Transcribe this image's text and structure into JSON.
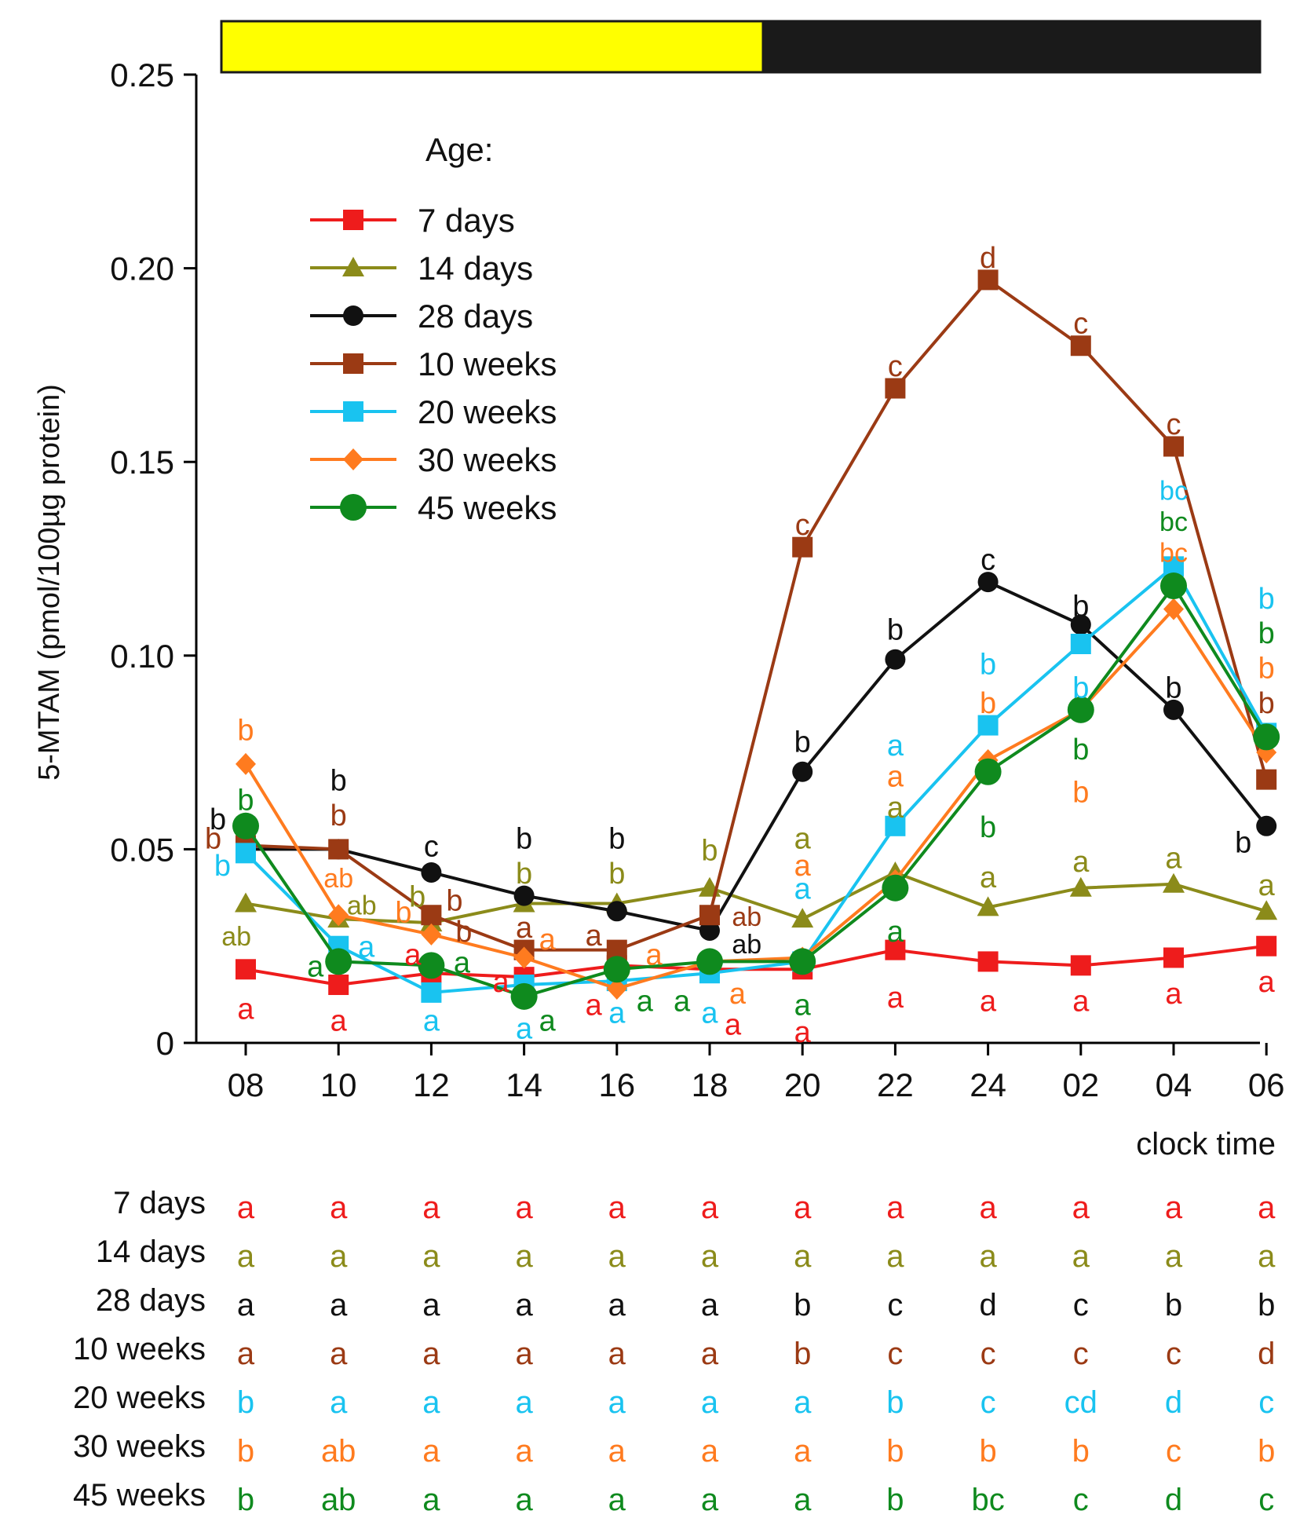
{
  "chart_data": {
    "type": "line",
    "ylabel": "5-MTAM (pmol/100µg protein)",
    "xlabel": "clock time",
    "ylim": [
      0,
      0.25
    ],
    "yticks": [
      0,
      0.05,
      0.1,
      0.15,
      0.2,
      0.25
    ],
    "ytick_labels": [
      "0",
      "0.05",
      "0.10",
      "0.15",
      "0.20",
      "0.25"
    ],
    "categories": [
      "08",
      "10",
      "12",
      "14",
      "16",
      "18",
      "20",
      "22",
      "24",
      "02",
      "04",
      "06"
    ],
    "light_bar": {
      "light_color": "#ffff00",
      "dark_color": "#1a1a1a",
      "light_until": "19.2"
    },
    "legend_title": "Age:",
    "series": [
      {
        "name": "7 days",
        "color": "#ee1c1c",
        "marker": "square",
        "values": [
          0.019,
          0.015,
          0.018,
          0.017,
          0.02,
          0.019,
          0.019,
          0.024,
          0.021,
          0.02,
          0.022,
          0.025
        ],
        "letters": [
          "a",
          "a",
          "a",
          "a",
          "a",
          "a",
          "a",
          "a",
          "a",
          "a",
          "a",
          "a"
        ]
      },
      {
        "name": "14 days",
        "color": "#8b8b1a",
        "marker": "triangle",
        "values": [
          0.036,
          0.032,
          0.031,
          0.036,
          0.036,
          0.04,
          0.032,
          0.044,
          0.035,
          0.04,
          0.041,
          0.034
        ],
        "letters": [
          "a",
          "a",
          "a",
          "a",
          "a",
          "a",
          "a",
          "a",
          "a",
          "a",
          "a",
          "a"
        ]
      },
      {
        "name": "28 days",
        "color": "#111111",
        "marker": "circle",
        "values": [
          0.05,
          0.05,
          0.044,
          0.038,
          0.034,
          0.029,
          0.07,
          0.099,
          0.119,
          0.108,
          0.086,
          0.056
        ],
        "letters": [
          "a",
          "a",
          "a",
          "a",
          "a",
          "a",
          "b",
          "c",
          "d",
          "c",
          "b",
          "b"
        ]
      },
      {
        "name": "10 weeks",
        "color": "#9b3a14",
        "marker": "square",
        "values": [
          0.051,
          0.05,
          0.033,
          0.024,
          0.024,
          0.033,
          0.128,
          0.169,
          0.197,
          0.18,
          0.154,
          0.068
        ],
        "letters": [
          "a",
          "a",
          "a",
          "a",
          "a",
          "a",
          "b",
          "c",
          "c",
          "c",
          "c",
          "d"
        ]
      },
      {
        "name": "20 weeks",
        "color": "#19c3f0",
        "marker": "square",
        "values": [
          0.049,
          0.025,
          0.013,
          0.015,
          0.016,
          0.018,
          0.021,
          0.056,
          0.082,
          0.103,
          0.123,
          0.08
        ],
        "letters": [
          "b",
          "a",
          "a",
          "a",
          "a",
          "a",
          "a",
          "b",
          "c",
          "cd",
          "d",
          "c"
        ]
      },
      {
        "name": "30 weeks",
        "color": "#ff7b1f",
        "marker": "diamond",
        "values": [
          0.072,
          0.033,
          0.028,
          0.022,
          0.014,
          0.021,
          0.022,
          0.042,
          0.073,
          0.086,
          0.112,
          0.075
        ],
        "letters": [
          "b",
          "ab",
          "a",
          "a",
          "a",
          "a",
          "a",
          "b",
          "b",
          "b",
          "c",
          "b"
        ]
      },
      {
        "name": "45 weeks",
        "color": "#0f8a1e",
        "marker": "bigcircle",
        "values": [
          0.056,
          0.021,
          0.02,
          0.012,
          0.019,
          0.021,
          0.021,
          0.04,
          0.07,
          0.086,
          0.118,
          0.079
        ],
        "letters": [
          "b",
          "ab",
          "a",
          "a",
          "a",
          "a",
          "a",
          "b",
          "bc",
          "c",
          "d",
          "c"
        ]
      }
    ],
    "annotations": [
      {
        "text": "b",
        "series": 5,
        "x": 0,
        "y": 0.081
      },
      {
        "text": "b",
        "series": 6,
        "x": 0,
        "y": 0.063
      },
      {
        "text": "b",
        "series": 2,
        "x": -0.3,
        "y": 0.058
      },
      {
        "text": "b",
        "series": 3,
        "x": -0.35,
        "y": 0.053
      },
      {
        "text": "b",
        "series": 4,
        "x": -0.25,
        "y": 0.046
      },
      {
        "text": "ab",
        "series": 1,
        "x": -0.1,
        "y": 0.028
      },
      {
        "text": "a",
        "series": 0,
        "x": 0,
        "y": 0.009
      },
      {
        "text": "b",
        "series": 2,
        "x": 1,
        "y": 0.068
      },
      {
        "text": "b",
        "series": 3,
        "x": 1,
        "y": 0.059
      },
      {
        "text": "ab",
        "series": 5,
        "x": 1,
        "y": 0.043
      },
      {
        "text": "ab",
        "series": 1,
        "x": 1.25,
        "y": 0.036
      },
      {
        "text": "a",
        "series": 6,
        "x": 0.75,
        "y": 0.02
      },
      {
        "text": "a",
        "series": 4,
        "x": 1.3,
        "y": 0.025
      },
      {
        "text": "a",
        "series": 0,
        "x": 1,
        "y": 0.006
      },
      {
        "text": "c",
        "series": 2,
        "x": 2,
        "y": 0.051
      },
      {
        "text": "b",
        "series": 1,
        "x": 1.85,
        "y": 0.038
      },
      {
        "text": "b",
        "series": 3,
        "x": 2.25,
        "y": 0.037
      },
      {
        "text": "b",
        "series": 5,
        "x": 1.7,
        "y": 0.034
      },
      {
        "text": "b",
        "series": 3,
        "x": 2.35,
        "y": 0.029
      },
      {
        "text": "a",
        "series": 0,
        "x": 1.8,
        "y": 0.023
      },
      {
        "text": "a",
        "series": 6,
        "x": 2.33,
        "y": 0.021
      },
      {
        "text": "a",
        "series": 4,
        "x": 2,
        "y": 0.006
      },
      {
        "text": "b",
        "series": 2,
        "x": 3,
        "y": 0.053
      },
      {
        "text": "b",
        "series": 1,
        "x": 3,
        "y": 0.044
      },
      {
        "text": "a",
        "series": 3,
        "x": 3,
        "y": 0.03
      },
      {
        "text": "a",
        "series": 5,
        "x": 3.25,
        "y": 0.027
      },
      {
        "text": "a",
        "series": 0,
        "x": 2.75,
        "y": 0.016
      },
      {
        "text": "a",
        "series": 6,
        "x": 3.25,
        "y": 0.006
      },
      {
        "text": "a",
        "series": 4,
        "x": 3,
        "y": 0.004
      },
      {
        "text": "b",
        "series": 2,
        "x": 4,
        "y": 0.053
      },
      {
        "text": "b",
        "series": 1,
        "x": 4,
        "y": 0.044
      },
      {
        "text": "a",
        "series": 3,
        "x": 3.75,
        "y": 0.028
      },
      {
        "text": "a",
        "series": 5,
        "x": 4.4,
        "y": 0.023
      },
      {
        "text": "a",
        "series": 0,
        "x": 3.75,
        "y": 0.01
      },
      {
        "text": "a",
        "series": 6,
        "x": 4.3,
        "y": 0.011
      },
      {
        "text": "a",
        "series": 4,
        "x": 4,
        "y": 0.008
      },
      {
        "text": "b",
        "series": 1,
        "x": 5,
        "y": 0.05
      },
      {
        "text": "ab",
        "series": 3,
        "x": 5.4,
        "y": 0.033
      },
      {
        "text": "ab",
        "series": 2,
        "x": 5.4,
        "y": 0.026
      },
      {
        "text": "a",
        "series": 6,
        "x": 4.7,
        "y": 0.011
      },
      {
        "text": "a",
        "series": 5,
        "x": 5.3,
        "y": 0.013
      },
      {
        "text": "a",
        "series": 4,
        "x": 5,
        "y": 0.008
      },
      {
        "text": "a",
        "series": 0,
        "x": 5.25,
        "y": 0.005
      },
      {
        "text": "c",
        "series": 3,
        "x": 6,
        "y": 0.134
      },
      {
        "text": "b",
        "series": 2,
        "x": 6,
        "y": 0.078
      },
      {
        "text": "a",
        "series": 1,
        "x": 6,
        "y": 0.053
      },
      {
        "text": "a",
        "series": 5,
        "x": 6,
        "y": 0.046
      },
      {
        "text": "a",
        "series": 4,
        "x": 6,
        "y": 0.04
      },
      {
        "text": "a",
        "series": 6,
        "x": 6,
        "y": 0.01
      },
      {
        "text": "a",
        "series": 0,
        "x": 6,
        "y": 0.003
      },
      {
        "text": "c",
        "series": 3,
        "x": 7,
        "y": 0.175
      },
      {
        "text": "b",
        "series": 2,
        "x": 7,
        "y": 0.107
      },
      {
        "text": "a",
        "series": 4,
        "x": 7,
        "y": 0.077
      },
      {
        "text": "a",
        "series": 5,
        "x": 7,
        "y": 0.069
      },
      {
        "text": "a",
        "series": 1,
        "x": 7,
        "y": 0.061
      },
      {
        "text": "a",
        "series": 6,
        "x": 7,
        "y": 0.029
      },
      {
        "text": "a",
        "series": 0,
        "x": 7,
        "y": 0.012
      },
      {
        "text": "d",
        "series": 3,
        "x": 8,
        "y": 0.203
      },
      {
        "text": "c",
        "series": 2,
        "x": 8,
        "y": 0.125
      },
      {
        "text": "b",
        "series": 4,
        "x": 8,
        "y": 0.098
      },
      {
        "text": "b",
        "series": 5,
        "x": 8,
        "y": 0.088
      },
      {
        "text": "a",
        "series": 1,
        "x": 8,
        "y": 0.043
      },
      {
        "text": "b",
        "series": 6,
        "x": 8,
        "y": 0.056
      },
      {
        "text": "a",
        "series": 0,
        "x": 8,
        "y": 0.011
      },
      {
        "text": "c",
        "series": 3,
        "x": 9,
        "y": 0.186
      },
      {
        "text": "b",
        "series": 2,
        "x": 9,
        "y": 0.113
      },
      {
        "text": "b",
        "series": 4,
        "x": 9,
        "y": 0.092
      },
      {
        "text": "b",
        "series": 6,
        "x": 9,
        "y": 0.076
      },
      {
        "text": "b",
        "series": 5,
        "x": 9,
        "y": 0.065
      },
      {
        "text": "a",
        "series": 1,
        "x": 9,
        "y": 0.047
      },
      {
        "text": "a",
        "series": 0,
        "x": 9,
        "y": 0.011
      },
      {
        "text": "c",
        "series": 3,
        "x": 10,
        "y": 0.16
      },
      {
        "text": "bc",
        "series": 4,
        "x": 10,
        "y": 0.143
      },
      {
        "text": "bc",
        "series": 6,
        "x": 10,
        "y": 0.135
      },
      {
        "text": "bc",
        "series": 5,
        "x": 10,
        "y": 0.127
      },
      {
        "text": "b",
        "series": 2,
        "x": 10,
        "y": 0.092
      },
      {
        "text": "a",
        "series": 1,
        "x": 10,
        "y": 0.048
      },
      {
        "text": "a",
        "series": 0,
        "x": 10,
        "y": 0.013
      },
      {
        "text": "b",
        "series": 4,
        "x": 11,
        "y": 0.115
      },
      {
        "text": "b",
        "series": 6,
        "x": 11,
        "y": 0.106
      },
      {
        "text": "b",
        "series": 5,
        "x": 11,
        "y": 0.097
      },
      {
        "text": "b",
        "series": 3,
        "x": 11,
        "y": 0.088
      },
      {
        "text": "b",
        "series": 2,
        "x": 10.75,
        "y": 0.052
      },
      {
        "text": "a",
        "series": 1,
        "x": 11,
        "y": 0.041
      },
      {
        "text": "a",
        "series": 0,
        "x": 11,
        "y": 0.016
      }
    ]
  }
}
